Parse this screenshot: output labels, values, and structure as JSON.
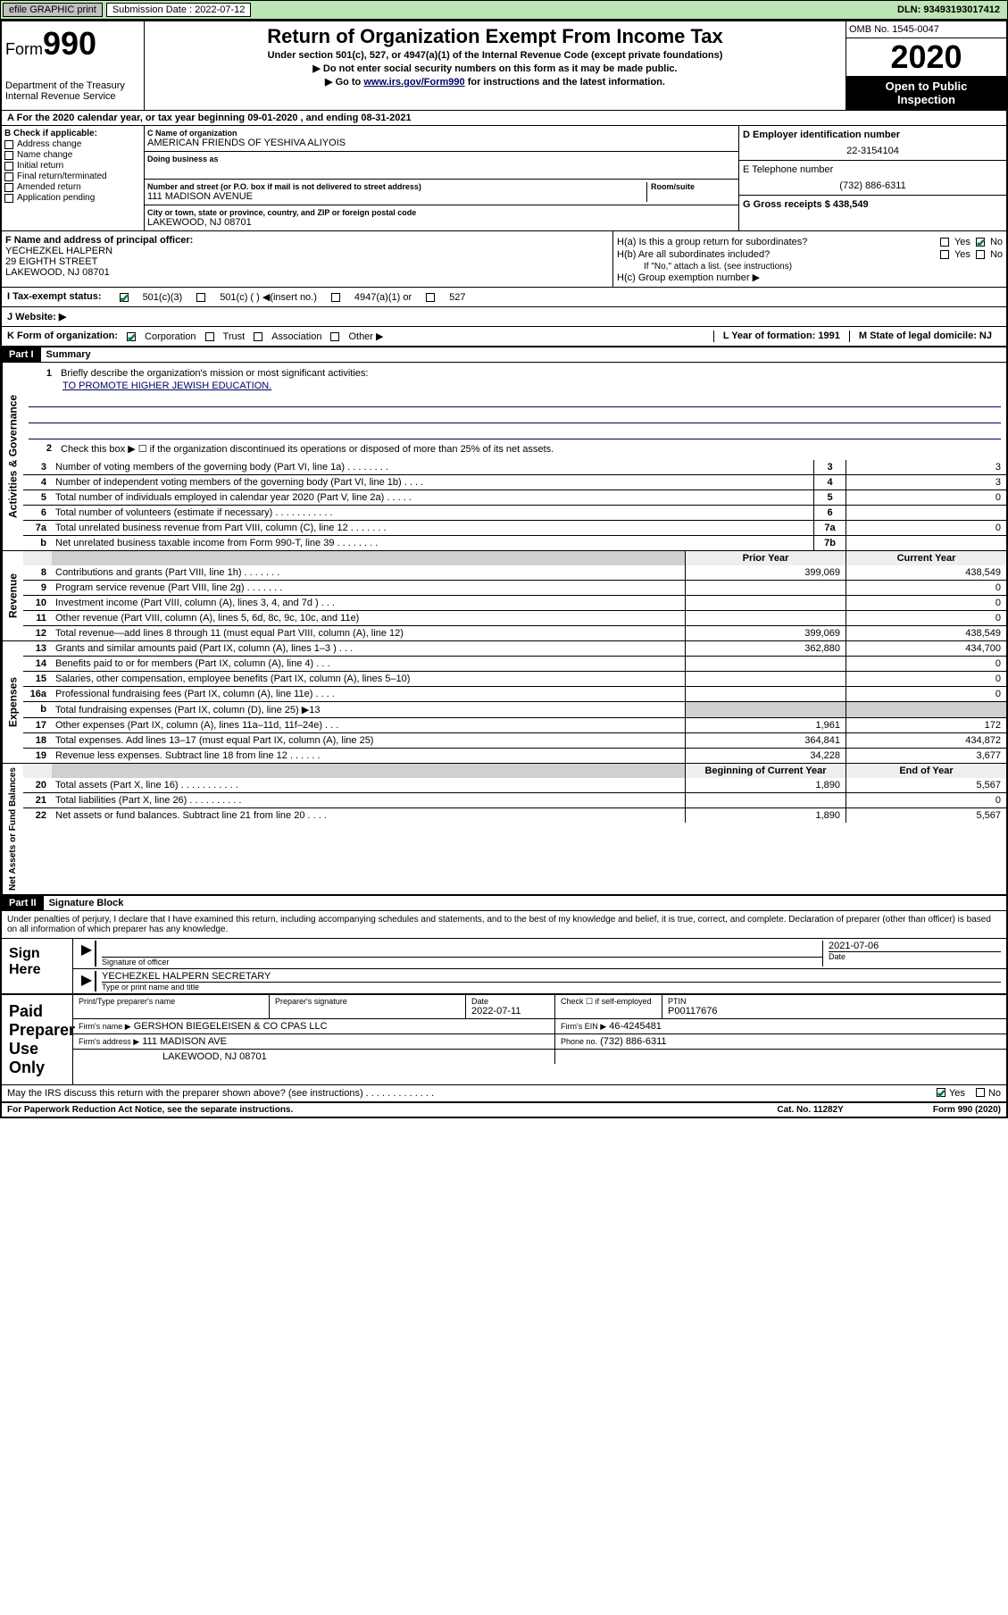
{
  "topbar": {
    "efile": "efile GRAPHIC print",
    "sub_label": "Submission Date : 2022-07-12",
    "dln": "DLN: 93493193017412"
  },
  "header": {
    "form_prefix": "Form",
    "form_num": "990",
    "dept1": "Department of the Treasury",
    "dept2": "Internal Revenue Service",
    "title": "Return of Organization Exempt From Income Tax",
    "sub1": "Under section 501(c), 527, or 4947(a)(1) of the Internal Revenue Code (except private foundations)",
    "sub2": "▶ Do not enter social security numbers on this form as it may be made public.",
    "sub3_pre": "▶ Go to ",
    "sub3_link": "www.irs.gov/Form990",
    "sub3_post": " for instructions and the latest information.",
    "omb": "OMB No. 1545-0047",
    "year": "2020",
    "open1": "Open to Public",
    "open2": "Inspection"
  },
  "calendar": "For the 2020 calendar year, or tax year beginning 09-01-2020    , and ending 08-31-2021",
  "sectionB": {
    "label": "B Check if applicable:",
    "opts": [
      "Address change",
      "Name change",
      "Initial return",
      "Final return/terminated",
      "Amended return",
      "Application pending"
    ],
    "c_name_label": "C Name of organization",
    "c_name": "AMERICAN FRIENDS OF YESHIVA ALIYOIS",
    "dba_label": "Doing business as",
    "addr_label": "Number and street (or P.O. box if mail is not delivered to street address)",
    "room_label": "Room/suite",
    "addr": "111 MADISON AVENUE",
    "city_label": "City or town, state or province, country, and ZIP or foreign postal code",
    "city": "LAKEWOOD, NJ  08701",
    "d_label": "D Employer identification number",
    "d_val": "22-3154104",
    "e_label": "E Telephone number",
    "e_val": "(732) 886-6311",
    "g_label": "G Gross receipts $ 438,549"
  },
  "sectionFH": {
    "f_label": "F  Name and address of principal officer:",
    "f_name": "YECHEZKEL HALPERN",
    "f_addr1": "29 EIGHTH STREET",
    "f_addr2": "LAKEWOOD, NJ  08701",
    "ha": "H(a)  Is this a group return for subordinates?",
    "hb": "H(b)  Are all subordinates included?",
    "hb_note": "If \"No,\" attach a list. (see instructions)",
    "hc": "H(c)  Group exemption number ▶",
    "yes": "Yes",
    "no": "No"
  },
  "rowI": {
    "label": "I    Tax-exempt status:",
    "o1": "501(c)(3)",
    "o2": "501(c) (    ) ◀(insert no.)",
    "o3": "4947(a)(1) or",
    "o4": "527"
  },
  "rowJ": "J    Website: ▶",
  "rowK": {
    "label": "K Form of organization:",
    "o1": "Corporation",
    "o2": "Trust",
    "o3": "Association",
    "o4": "Other ▶",
    "l": "L Year of formation: 1991",
    "m": "M State of legal domicile: NJ"
  },
  "partI": {
    "header": "Part I",
    "title": "Summary"
  },
  "governance": {
    "label": "Activities & Governance",
    "q1": "Briefly describe the organization's mission or most significant activities:",
    "mission": "TO PROMOTE HIGHER JEWISH EDUCATION.",
    "q2": "Check this box ▶ ☐  if the organization discontinued its operations or disposed of more than 25% of its net assets.",
    "rows": [
      {
        "n": "3",
        "d": "Number of voting members of the governing body (Part VI, line 1a)   .    .    .    .    .    .    .    .",
        "ln": "3",
        "v": "3"
      },
      {
        "n": "4",
        "d": "Number of independent voting members of the governing body (Part VI, line 1b)   .    .    .    .",
        "ln": "4",
        "v": "3"
      },
      {
        "n": "5",
        "d": "Total number of individuals employed in calendar year 2020 (Part V, line 2a)   .    .    .    .    .",
        "ln": "5",
        "v": "0"
      },
      {
        "n": "6",
        "d": "Total number of volunteers (estimate if necessary)   .    .    .    .    .    .    .    .    .    .    .",
        "ln": "6",
        "v": ""
      },
      {
        "n": "7a",
        "d": "Total unrelated business revenue from Part VIII, column (C), line 12   .    .    .    .    .    .    .",
        "ln": "7a",
        "v": "0"
      },
      {
        "n": "b",
        "d": "Net unrelated business taxable income from Form 990-T, line 39   .    .    .    .    .    .    .    .",
        "ln": "7b",
        "v": ""
      }
    ]
  },
  "revenue": {
    "label": "Revenue",
    "prior": "Prior Year",
    "current": "Current Year",
    "rows": [
      {
        "n": "8",
        "d": "Contributions and grants (Part VIII, line 1h)   .    .    .    .    .    .    .",
        "p": "399,069",
        "c": "438,549"
      },
      {
        "n": "9",
        "d": "Program service revenue (Part VIII, line 2g)   .    .    .    .    .    .    .",
        "p": "",
        "c": "0"
      },
      {
        "n": "10",
        "d": "Investment income (Part VIII, column (A), lines 3, 4, and 7d )   .    .    .",
        "p": "",
        "c": "0"
      },
      {
        "n": "11",
        "d": "Other revenue (Part VIII, column (A), lines 5, 6d, 8c, 9c, 10c, and 11e)",
        "p": "",
        "c": "0"
      },
      {
        "n": "12",
        "d": "Total revenue—add lines 8 through 11 (must equal Part VIII, column (A), line 12)",
        "p": "399,069",
        "c": "438,549"
      }
    ]
  },
  "expenses": {
    "label": "Expenses",
    "rows": [
      {
        "n": "13",
        "d": "Grants and similar amounts paid (Part IX, column (A), lines 1–3 )   .    .    .",
        "p": "362,880",
        "c": "434,700"
      },
      {
        "n": "14",
        "d": "Benefits paid to or for members (Part IX, column (A), line 4)   .    .    .",
        "p": "",
        "c": "0"
      },
      {
        "n": "15",
        "d": "Salaries, other compensation, employee benefits (Part IX, column (A), lines 5–10)",
        "p": "",
        "c": "0"
      },
      {
        "n": "16a",
        "d": "Professional fundraising fees (Part IX, column (A), line 11e)   .    .    .    .",
        "p": "",
        "c": "0"
      },
      {
        "n": "b",
        "d": "Total fundraising expenses (Part IX, column (D), line 25) ▶13",
        "p": "grey",
        "c": "grey"
      },
      {
        "n": "17",
        "d": "Other expenses (Part IX, column (A), lines 11a–11d, 11f–24e)   .    .    .",
        "p": "1,961",
        "c": "172"
      },
      {
        "n": "18",
        "d": "Total expenses. Add lines 13–17 (must equal Part IX, column (A), line 25)",
        "p": "364,841",
        "c": "434,872"
      },
      {
        "n": "19",
        "d": "Revenue less expenses. Subtract line 18 from line 12   .    .    .    .    .    .",
        "p": "34,228",
        "c": "3,677"
      }
    ]
  },
  "netassets": {
    "label": "Net Assets or Fund Balances",
    "begin": "Beginning of Current Year",
    "end": "End of Year",
    "rows": [
      {
        "n": "20",
        "d": "Total assets (Part X, line 16)   .    .    .    .    .    .    .    .    .    .    .",
        "p": "1,890",
        "c": "5,567"
      },
      {
        "n": "21",
        "d": "Total liabilities (Part X, line 26)   .    .    .    .    .    .    .    .    .    .",
        "p": "",
        "c": "0"
      },
      {
        "n": "22",
        "d": "Net assets or fund balances. Subtract line 21 from line 20   .    .    .    .",
        "p": "1,890",
        "c": "5,567"
      }
    ]
  },
  "partII": {
    "header": "Part II",
    "title": "Signature Block",
    "declare": "Under penalties of perjury, I declare that I have examined this return, including accompanying schedules and statements, and to the best of my knowledge and belief, it is true, correct, and complete. Declaration of preparer (other than officer) is based on all information of which preparer has any knowledge."
  },
  "sign": {
    "label": "Sign Here",
    "sig_label": "Signature of officer",
    "date": "2021-07-06",
    "date_label": "Date",
    "name": "YECHEZKEL HALPERN  SECRETARY",
    "name_label": "Type or print name and title"
  },
  "preparer": {
    "label": "Paid Preparer Use Only",
    "h1": "Print/Type preparer's name",
    "h2": "Preparer's signature",
    "h3": "Date",
    "h3v": "2022-07-11",
    "h4": "Check ☐ if self-employed",
    "h5": "PTIN",
    "h5v": "P00117676",
    "firm_label": "Firm's name     ▶",
    "firm": "GERSHON BIEGELEISEN & CO CPAS LLC",
    "ein_label": "Firm's EIN ▶",
    "ein": "46-4245481",
    "addr_label": "Firm's address  ▶",
    "addr1": "111 MADISON AVE",
    "addr2": "LAKEWOOD, NJ  08701",
    "phone_label": "Phone no.",
    "phone": "(732) 886-6311",
    "discuss": "May the IRS discuss this return with the preparer shown above? (see instructions)   .    .    .    .    .    .    .    .    .    .    .    .    ."
  },
  "footer": {
    "left": "For Paperwork Reduction Act Notice, see the separate instructions.",
    "mid": "Cat. No. 11282Y",
    "right": "Form 990 (2020)"
  }
}
